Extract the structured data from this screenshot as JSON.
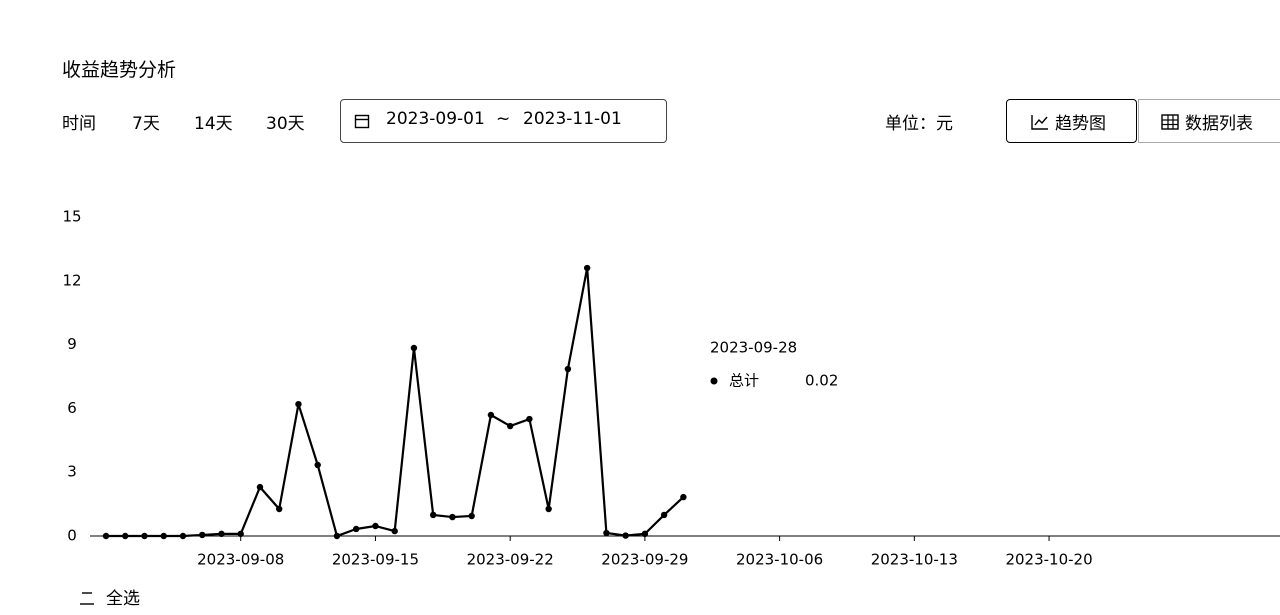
{
  "header": {
    "title": "收益趋势分析"
  },
  "toolbar": {
    "time_label": "时间",
    "presets": [
      "7天",
      "14天",
      "30天"
    ],
    "date_start": "2023-09-01",
    "date_separator": "~",
    "date_end": "2023-11-01",
    "unit_label": "单位：",
    "unit": "元",
    "views": [
      "趋势图",
      "数据列表"
    ]
  },
  "chart_data": {
    "type": "line",
    "x": [
      "2023-09-01",
      "2023-09-02",
      "2023-09-03",
      "2023-09-04",
      "2023-09-05",
      "2023-09-06",
      "2023-09-07",
      "2023-09-08",
      "2023-09-09",
      "2023-09-10",
      "2023-09-11",
      "2023-09-12",
      "2023-09-13",
      "2023-09-14",
      "2023-09-15",
      "2023-09-16",
      "2023-09-17",
      "2023-09-18",
      "2023-09-19",
      "2023-09-20",
      "2023-09-21",
      "2023-09-22",
      "2023-09-23",
      "2023-09-24",
      "2023-09-25",
      "2023-09-26",
      "2023-09-27",
      "2023-09-28",
      "2023-09-29",
      "2023-09-30",
      "2023-10-01"
    ],
    "series": [
      {
        "name": "总计",
        "color": "#000000",
        "values": [
          0,
          0,
          0,
          0,
          0,
          0.05,
          0.1,
          0.1,
          2.3,
          1.27,
          6.2,
          3.34,
          0,
          0.33,
          0.47,
          0.23,
          8.84,
          0.99,
          0.89,
          0.94,
          5.69,
          5.17,
          5.5,
          1.27,
          7.85,
          12.6,
          0.14,
          0.02,
          0.1,
          0.99,
          1.83
        ]
      }
    ],
    "xlim": [
      "2023-09-01",
      "2023-11-01"
    ],
    "xticks": [
      "2023-09-08",
      "2023-09-15",
      "2023-09-22",
      "2023-09-29",
      "2023-10-06",
      "2023-10-13",
      "2023-10-20"
    ],
    "ylim": [
      0,
      15
    ],
    "yticks": [
      0,
      3,
      6,
      9,
      12,
      15
    ],
    "tooltip": {
      "x": "2023-09-28"
    }
  },
  "legend_toggle": "全选"
}
